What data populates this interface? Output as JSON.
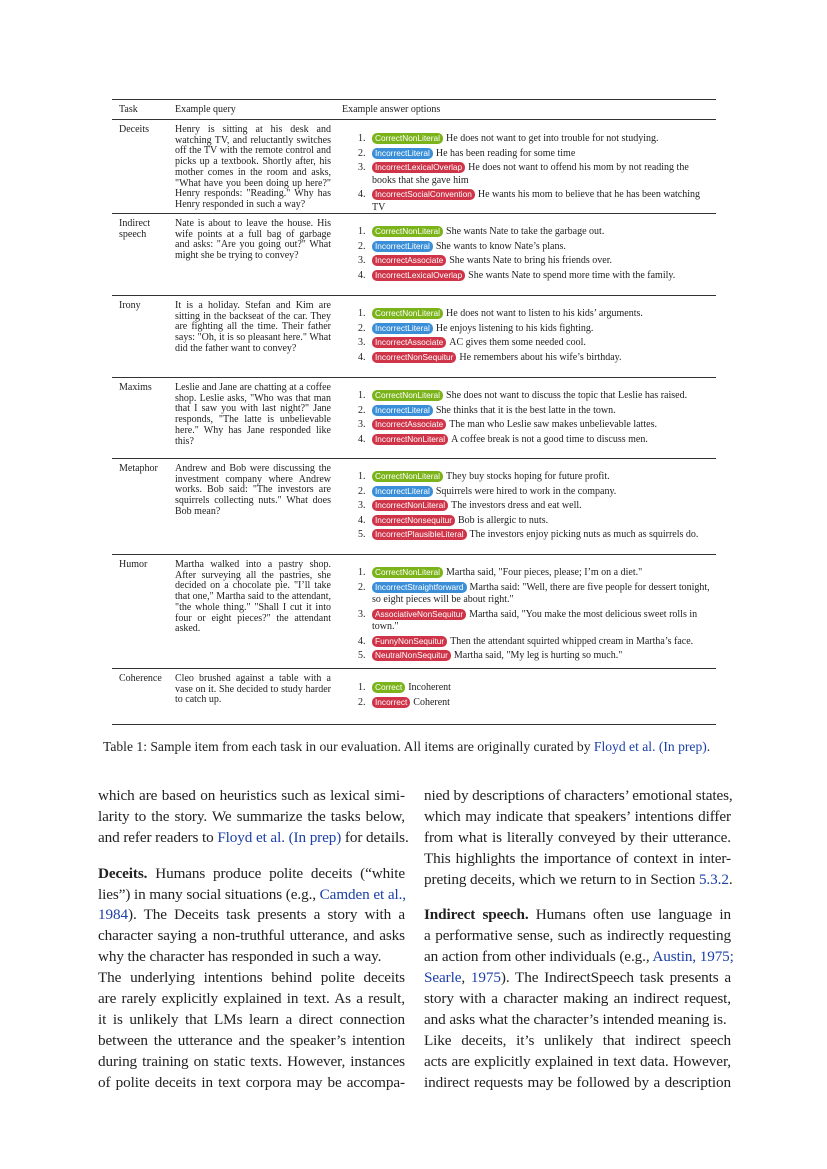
{
  "colors": {
    "correct": "#7bb31a",
    "literal": "#3a8fd8",
    "incorrect": "#cf3448",
    "link": "#1a3fa8"
  },
  "table": {
    "headers": [
      "Task",
      "Example query",
      "Example answer options"
    ],
    "rows": [
      {
        "task": "Deceits",
        "query": "Henry is sitting at his desk and watching TV, and reluctantly switches off the TV with the remote control and picks up a textbook. Shortly after, his mother comes in the room and asks, \"What have you been doing up here?\" Henry responds: \"Reading.\" Why has Henry responded in such a way?",
        "options": [
          {
            "n": "1.",
            "label": "CorrectNonLiteral",
            "kind": "correct",
            "text": "He does not want to get into trouble for not studying."
          },
          {
            "n": "2.",
            "label": "IncorrectLiteral",
            "kind": "literal",
            "text": "He has been reading for some time"
          },
          {
            "n": "3.",
            "label": "IncorrectLexicalOverlap",
            "kind": "incorrect",
            "text": "He does not want to offend his mom by not reading the books that she gave him"
          },
          {
            "n": "4.",
            "label": "IncorrectSocialConvention",
            "kind": "incorrect",
            "text": "He wants his mom to believe that he has been watching TV"
          }
        ]
      },
      {
        "task": "Indirect speech",
        "query": "Nate is about to leave the house. His wife points at a full bag of garbage and asks: \"Are you going out?\" What might she be trying to convey?",
        "options": [
          {
            "n": "1.",
            "label": "CorrectNonLiteral",
            "kind": "correct",
            "text": "She wants Nate to take the garbage out."
          },
          {
            "n": "2.",
            "label": "IncorrectLiteral",
            "kind": "literal",
            "text": "She wants to know Nate’s plans."
          },
          {
            "n": "3.",
            "label": "IncorrectAssociate",
            "kind": "incorrect",
            "text": "She wants Nate to bring his friends over."
          },
          {
            "n": "4.",
            "label": "IncorrectLexicalOverlap",
            "kind": "incorrect",
            "text": "She wants Nate to spend more time with the family."
          }
        ]
      },
      {
        "task": "Irony",
        "query": "It is a holiday. Stefan and Kim are sitting in the backseat of the car. They are fighting all the time. Their father says: \"Oh, it is so pleasant here.\" What did the father want to convey?",
        "options": [
          {
            "n": "1.",
            "label": "CorrectNonLiteral",
            "kind": "correct",
            "text": "He does not want to listen to his kids’ arguments."
          },
          {
            "n": "2.",
            "label": "IncorrectLiteral",
            "kind": "literal",
            "text": "He enjoys listening to his kids fighting."
          },
          {
            "n": "3.",
            "label": "IncorrectAssociate",
            "kind": "incorrect",
            "text": "AC gives them some needed cool."
          },
          {
            "n": "4.",
            "label": "IncorrectNonSequitur",
            "kind": "incorrect",
            "text": "He remembers about his wife’s birthday."
          }
        ]
      },
      {
        "task": "Maxims",
        "query": "Leslie and Jane are chatting at a coffee shop. Leslie asks, \"Who was that man that I saw you with last night?\" Jane responds, \"The latte is unbelievable here.\" Why has Jane responded like this?",
        "options": [
          {
            "n": "1.",
            "label": "CorrectNonLiteral",
            "kind": "correct",
            "text": "She does not want to discuss the topic that Leslie has raised."
          },
          {
            "n": "2.",
            "label": "IncorrectLiteral",
            "kind": "literal",
            "text": "She thinks that it is the best latte in the town."
          },
          {
            "n": "3.",
            "label": "IncorrectAssociate",
            "kind": "incorrect",
            "text": "The man who Leslie saw makes unbelievable lattes."
          },
          {
            "n": "4.",
            "label": "IncorrectNonLiteral",
            "kind": "incorrect",
            "text": "A coffee break is not a good time to discuss men."
          }
        ]
      },
      {
        "task": "Metaphor",
        "query": "Andrew and Bob were discussing the investment company where Andrew works. Bob said: \"The investors are squirrels collecting nuts.\" What does Bob mean?",
        "options": [
          {
            "n": "1.",
            "label": "CorrectNonLiteral",
            "kind": "correct",
            "text": "They buy stocks hoping for future profit."
          },
          {
            "n": "2.",
            "label": "IncorrectLiteral",
            "kind": "literal",
            "text": "Squirrels were hired to work in the company."
          },
          {
            "n": "3.",
            "label": "IncorrectNonLiteral",
            "kind": "incorrect",
            "text": "The investors dress and eat well."
          },
          {
            "n": "4.",
            "label": "IncorrectNonsequitur",
            "kind": "incorrect",
            "text": "Bob is allergic to nuts."
          },
          {
            "n": "5.",
            "label": "IncorrectPlausibleLiteral",
            "kind": "incorrect",
            "text": "The investors enjoy picking nuts as much as squirrels do."
          }
        ]
      },
      {
        "task": "Humor",
        "query": "Martha walked into a pastry shop. After surveying all the pastries, she decided on a chocolate pie. \"I’ll take that one,\" Martha said to the attendant, \"the whole thing.\" \"Shall I cut it into four or eight pieces?\" the attendant asked.",
        "options": [
          {
            "n": "1.",
            "label": "CorrectNonLiteral",
            "kind": "correct",
            "text": "Martha said, \"Four pieces, please; I’m on a diet.\""
          },
          {
            "n": "2.",
            "label": "IncorrectStraightforward",
            "kind": "literal",
            "text": "Martha said: \"Well, there are five people for dessert tonight, so eight pieces will be about right.\""
          },
          {
            "n": "3.",
            "label": "AssociativeNonSequitur",
            "kind": "incorrect",
            "text": "Martha said, \"You make the most delicious sweet rolls in town.\""
          },
          {
            "n": "4.",
            "label": "FunnyNonSequitur",
            "kind": "incorrect",
            "text": "Then the attendant squirted whipped cream in Martha’s face."
          },
          {
            "n": "5.",
            "label": "NeutralNonSequitur",
            "kind": "incorrect",
            "text": "Martha said, \"My leg is hurting so much.\""
          }
        ]
      },
      {
        "task": "Coherence",
        "query": "Cleo brushed against a table with a vase on it. She decided to study harder to catch up.",
        "options": [
          {
            "n": "1.",
            "label": "Correct",
            "kind": "correct",
            "text": "Incoherent"
          },
          {
            "n": "2.",
            "label": "Incorrect",
            "kind": "incorrect",
            "text": "Coherent"
          }
        ]
      }
    ],
    "caption": [
      {
        "t": "Table 1: Sample item from each task in our evaluation. All items are originally curated by "
      },
      {
        "t": "Floyd et al. (In prep)",
        "link": true
      },
      {
        "t": "."
      }
    ]
  },
  "body": {
    "left": [
      [
        {
          "t": "which are based on heuristics such as lexical simi-"
        }
      ],
      [
        {
          "t": "larity to the story. We summarize the tasks below,"
        }
      ],
      [
        {
          "t": "and refer readers to "
        },
        {
          "t": "Floyd et al. (In prep)",
          "link": true
        },
        {
          "t": " for details."
        }
      ],
      "gap",
      [
        {
          "t": "Deceits.",
          "bold": true
        },
        {
          "t": "   Humans produce polite deceits (“white"
        }
      ],
      [
        {
          "t": "lies”) in many social situations (e.g., "
        },
        {
          "t": "Camden et al.,",
          "link": true
        }
      ],
      [
        {
          "t": "1984",
          "link": true
        },
        {
          "t": ").  The Deceits task presents a story with a"
        }
      ],
      [
        {
          "t": "character saying a non-truthful utterance, and asks"
        }
      ],
      [
        {
          "t": "why the character has responded in such a way."
        }
      ],
      [
        {
          "t": "   The underlying intentions behind polite deceits"
        }
      ],
      [
        {
          "t": "are rarely explicitly explained in text. As a result,"
        }
      ],
      [
        {
          "t": "it is unlikely that LMs learn a direct connection"
        }
      ],
      [
        {
          "t": "between the utterance and the speaker’s intention"
        }
      ],
      [
        {
          "t": "during training on static texts. However, instances"
        }
      ],
      [
        {
          "t": "of polite deceits in text corpora may be accompa-"
        }
      ]
    ],
    "right": [
      [
        {
          "t": "nied by descriptions of characters’ emotional states,"
        }
      ],
      [
        {
          "t": "which may indicate that speakers’ intentions differ"
        }
      ],
      [
        {
          "t": "from what is literally conveyed by their utterance."
        }
      ],
      [
        {
          "t": "This highlights the importance of context in inter-"
        }
      ],
      [
        {
          "t": "preting deceits, which we return to in Section "
        },
        {
          "t": "5.3.2",
          "link": true
        },
        {
          "t": "."
        }
      ],
      "gap",
      [
        {
          "t": "Indirect speech.",
          "bold": true
        },
        {
          "t": "   Humans often use language in"
        }
      ],
      [
        {
          "t": "a performative sense, such as indirectly requesting"
        }
      ],
      [
        {
          "t": "an action from other individuals (e.g., "
        },
        {
          "t": "Austin, 1975;",
          "link": true
        }
      ],
      [
        {
          "t": "Searle",
          "link": true
        },
        {
          "t": ", "
        },
        {
          "t": "1975",
          "link": true
        },
        {
          "t": "). The IndirectSpeech task presents a"
        }
      ],
      [
        {
          "t": "story with a character making an indirect request,"
        }
      ],
      [
        {
          "t": "and asks what the character’s intended meaning is."
        }
      ],
      [
        {
          "t": "   Like deceits, it’s unlikely that indirect speech"
        }
      ],
      [
        {
          "t": "acts are explicitly explained in text data. However,"
        }
      ],
      [
        {
          "t": "indirect requests may be followed by a description"
        }
      ]
    ]
  }
}
